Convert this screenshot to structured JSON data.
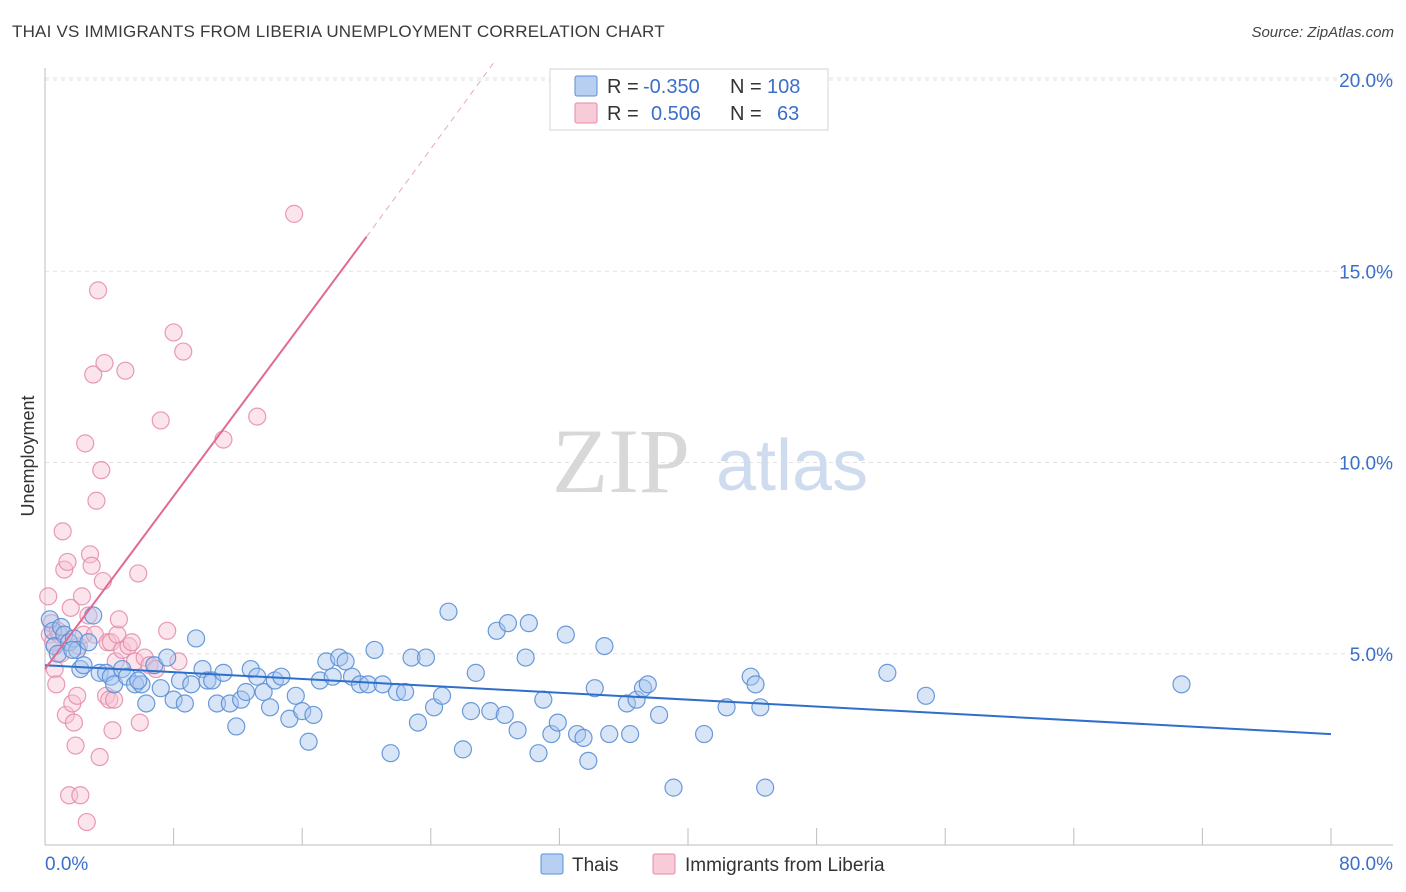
{
  "title": "THAI VS IMMIGRANTS FROM LIBERIA UNEMPLOYMENT CORRELATION CHART",
  "source": "Source: ZipAtlas.com",
  "watermark": {
    "zip": "ZIP",
    "atlas": "atlas"
  },
  "colors": {
    "thai_stroke": "#5b8fd6",
    "thai_fill": "#a9c6ee",
    "liberia_stroke": "#e48aa8",
    "liberia_fill": "#f6c3d3",
    "thai_line": "#2f6fcc",
    "liberia_line": "#e06a94",
    "grid": "#e2e2e2",
    "tick_label": "#3b6fc9"
  },
  "legend_box": {
    "rows": [
      {
        "r_label": "R =",
        "r_value": "-0.350",
        "n_label": "N =",
        "n_value": "108"
      },
      {
        "r_label": "R =",
        "r_value": "0.506",
        "n_label": "N =",
        "n_value": "63"
      }
    ]
  },
  "bottom_legend": [
    "Thais",
    "Immigrants from Liberia"
  ],
  "chart_data": {
    "type": "scatter",
    "ylabel": "Unemployment",
    "xlabel": "",
    "xlim": [
      0,
      80
    ],
    "ylim": [
      0,
      20.5
    ],
    "x_tick_labels": [
      "0.0%",
      "80.0%"
    ],
    "y_ticks": [
      5,
      10,
      15,
      20
    ],
    "y_tick_labels": [
      "5.0%",
      "10.0%",
      "15.0%",
      "20.0%"
    ],
    "grid": true,
    "legend_position": "top-center",
    "series": [
      {
        "name": "Thais",
        "trend": {
          "x": [
            0,
            80
          ],
          "y": [
            4.7,
            2.9
          ]
        },
        "points": [
          [
            0.3,
            5.9
          ],
          [
            0.5,
            5.6
          ],
          [
            0.6,
            5.2
          ],
          [
            0.8,
            5.0
          ],
          [
            1.0,
            5.7
          ],
          [
            1.2,
            5.5
          ],
          [
            1.5,
            5.3
          ],
          [
            1.8,
            5.4
          ],
          [
            2.0,
            5.1
          ],
          [
            2.2,
            4.6
          ],
          [
            2.4,
            4.7
          ],
          [
            3.0,
            6.0
          ],
          [
            3.4,
            4.5
          ],
          [
            3.8,
            4.5
          ],
          [
            4.1,
            4.4
          ],
          [
            4.3,
            4.2
          ],
          [
            4.8,
            4.6
          ],
          [
            5.1,
            4.4
          ],
          [
            5.6,
            4.2
          ],
          [
            6.0,
            4.2
          ],
          [
            6.3,
            3.7
          ],
          [
            6.8,
            4.7
          ],
          [
            7.2,
            4.1
          ],
          [
            7.6,
            4.9
          ],
          [
            8.0,
            3.8
          ],
          [
            8.4,
            4.3
          ],
          [
            8.7,
            3.7
          ],
          [
            9.1,
            4.2
          ],
          [
            9.4,
            5.4
          ],
          [
            9.8,
            4.6
          ],
          [
            10.1,
            4.3
          ],
          [
            10.4,
            4.3
          ],
          [
            10.7,
            3.7
          ],
          [
            11.1,
            4.5
          ],
          [
            11.5,
            3.7
          ],
          [
            11.9,
            3.1
          ],
          [
            12.2,
            3.8
          ],
          [
            12.5,
            4.0
          ],
          [
            12.8,
            4.6
          ],
          [
            13.2,
            4.4
          ],
          [
            13.6,
            4.0
          ],
          [
            14.0,
            3.6
          ],
          [
            14.3,
            4.3
          ],
          [
            14.7,
            4.4
          ],
          [
            15.2,
            3.3
          ],
          [
            15.6,
            3.9
          ],
          [
            16.0,
            3.5
          ],
          [
            16.4,
            2.7
          ],
          [
            16.7,
            3.4
          ],
          [
            17.1,
            4.3
          ],
          [
            17.5,
            4.8
          ],
          [
            17.9,
            4.4
          ],
          [
            18.3,
            4.9
          ],
          [
            18.7,
            4.8
          ],
          [
            19.1,
            4.4
          ],
          [
            19.6,
            4.2
          ],
          [
            20.1,
            4.2
          ],
          [
            20.5,
            5.1
          ],
          [
            21.0,
            4.2
          ],
          [
            21.5,
            2.4
          ],
          [
            21.9,
            4.0
          ],
          [
            22.4,
            4.0
          ],
          [
            22.8,
            4.9
          ],
          [
            23.2,
            3.2
          ],
          [
            23.7,
            4.9
          ],
          [
            24.2,
            3.6
          ],
          [
            24.7,
            3.9
          ],
          [
            25.1,
            6.1
          ],
          [
            26.0,
            2.5
          ],
          [
            26.5,
            3.5
          ],
          [
            26.8,
            4.5
          ],
          [
            27.7,
            3.5
          ],
          [
            28.1,
            5.6
          ],
          [
            28.6,
            3.4
          ],
          [
            28.8,
            5.8
          ],
          [
            29.4,
            3.0
          ],
          [
            29.9,
            4.9
          ],
          [
            30.1,
            5.8
          ],
          [
            30.7,
            2.4
          ],
          [
            31.0,
            3.8
          ],
          [
            31.5,
            2.9
          ],
          [
            31.9,
            3.2
          ],
          [
            32.4,
            5.5
          ],
          [
            33.1,
            2.9
          ],
          [
            33.5,
            2.8
          ],
          [
            33.8,
            2.2
          ],
          [
            34.2,
            4.1
          ],
          [
            34.8,
            5.2
          ],
          [
            35.1,
            2.9
          ],
          [
            36.2,
            3.7
          ],
          [
            36.4,
            2.9
          ],
          [
            36.8,
            3.8
          ],
          [
            37.2,
            4.1
          ],
          [
            37.5,
            4.2
          ],
          [
            38.2,
            3.4
          ],
          [
            39.1,
            1.5
          ],
          [
            41.0,
            2.9
          ],
          [
            42.4,
            3.6
          ],
          [
            43.9,
            4.4
          ],
          [
            44.2,
            4.2
          ],
          [
            44.5,
            3.6
          ],
          [
            44.8,
            1.5
          ],
          [
            52.4,
            4.5
          ],
          [
            54.8,
            3.9
          ],
          [
            70.7,
            4.2
          ],
          [
            1.7,
            5.1
          ],
          [
            2.7,
            5.3
          ],
          [
            5.8,
            4.3
          ]
        ]
      },
      {
        "name": "Immigrants from Liberia",
        "trend": {
          "x": [
            0,
            20
          ],
          "y": [
            4.6,
            15.9
          ],
          "dash_x": [
            20,
            28
          ],
          "dash_y": [
            15.9,
            20.5
          ]
        },
        "points": [
          [
            0.2,
            6.5
          ],
          [
            0.3,
            5.5
          ],
          [
            0.4,
            5.8
          ],
          [
            0.5,
            5.3
          ],
          [
            0.6,
            4.6
          ],
          [
            0.7,
            4.2
          ],
          [
            0.8,
            5.6
          ],
          [
            0.9,
            5.5
          ],
          [
            1.0,
            5.0
          ],
          [
            1.1,
            8.2
          ],
          [
            1.2,
            7.2
          ],
          [
            1.3,
            3.4
          ],
          [
            1.4,
            7.4
          ],
          [
            1.5,
            1.3
          ],
          [
            1.6,
            6.2
          ],
          [
            1.7,
            3.7
          ],
          [
            1.8,
            3.2
          ],
          [
            1.9,
            2.6
          ],
          [
            2.0,
            3.9
          ],
          [
            2.1,
            5.2
          ],
          [
            2.2,
            1.3
          ],
          [
            2.3,
            6.5
          ],
          [
            2.4,
            5.5
          ],
          [
            2.5,
            10.5
          ],
          [
            2.6,
            0.6
          ],
          [
            2.7,
            6.0
          ],
          [
            2.8,
            7.6
          ],
          [
            2.9,
            7.3
          ],
          [
            3.0,
            12.3
          ],
          [
            3.1,
            5.5
          ],
          [
            3.2,
            9.0
          ],
          [
            3.3,
            14.5
          ],
          [
            3.4,
            2.3
          ],
          [
            3.5,
            9.8
          ],
          [
            3.6,
            6.9
          ],
          [
            3.7,
            12.6
          ],
          [
            3.8,
            3.9
          ],
          [
            3.9,
            5.3
          ],
          [
            4.0,
            3.8
          ],
          [
            4.1,
            5.3
          ],
          [
            4.2,
            3.0
          ],
          [
            4.3,
            3.8
          ],
          [
            4.4,
            4.8
          ],
          [
            4.5,
            5.5
          ],
          [
            4.6,
            5.9
          ],
          [
            4.8,
            5.1
          ],
          [
            5.0,
            12.4
          ],
          [
            5.2,
            5.2
          ],
          [
            5.4,
            5.3
          ],
          [
            5.6,
            4.8
          ],
          [
            5.8,
            7.1
          ],
          [
            5.9,
            3.2
          ],
          [
            6.2,
            4.9
          ],
          [
            6.5,
            4.7
          ],
          [
            6.9,
            4.6
          ],
          [
            7.2,
            11.1
          ],
          [
            7.6,
            5.6
          ],
          [
            8.0,
            13.4
          ],
          [
            8.3,
            4.8
          ],
          [
            8.6,
            12.9
          ],
          [
            11.1,
            10.6
          ],
          [
            13.2,
            11.2
          ],
          [
            15.5,
            16.5
          ]
        ]
      }
    ]
  }
}
